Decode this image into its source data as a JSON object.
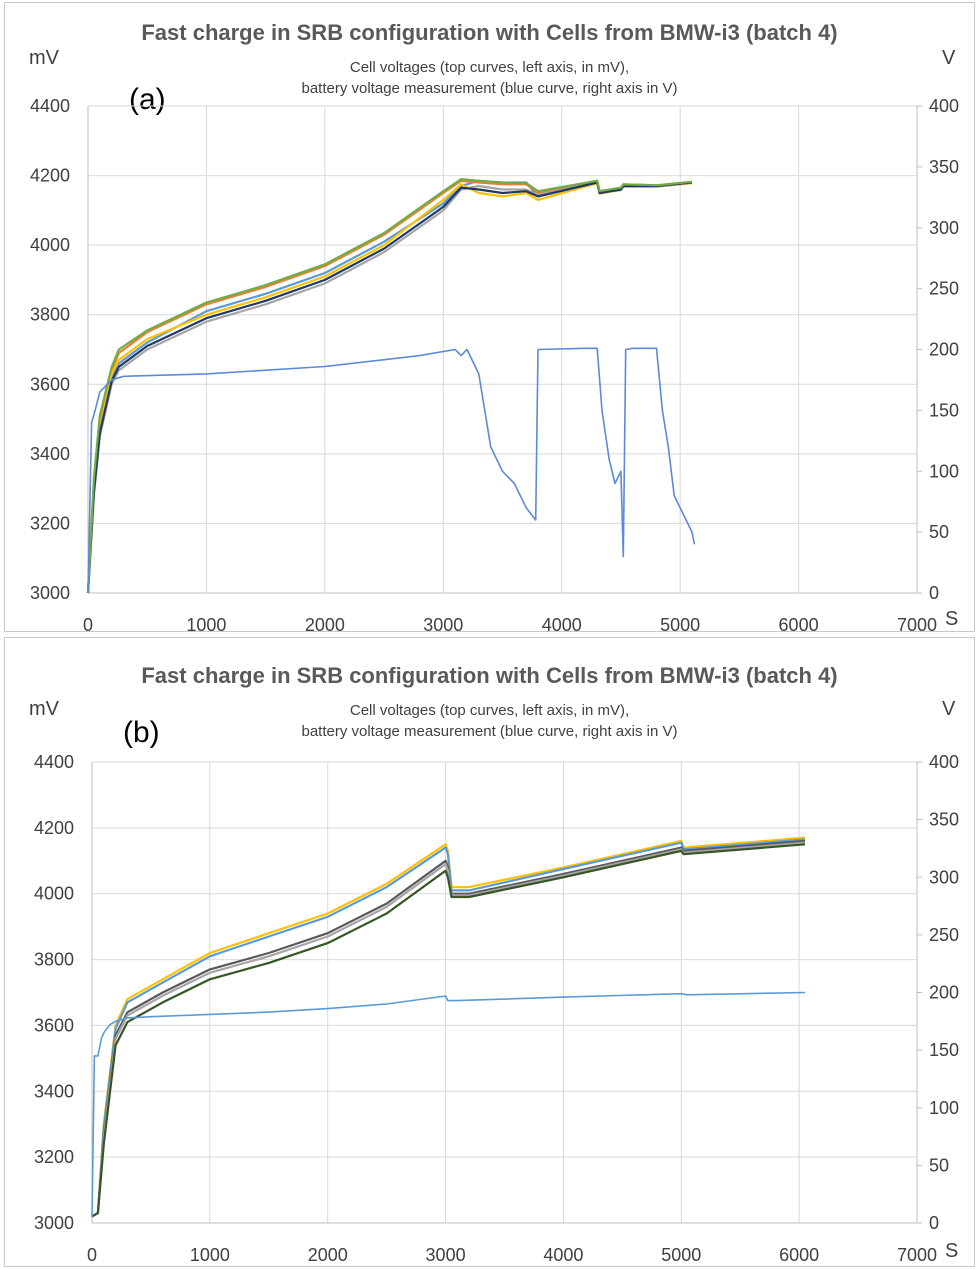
{
  "chart_data": [
    {
      "type": "line",
      "panel_label": "(a)",
      "title": "Fast charge in SRB configuration  with Cells from BMW-i3 (batch 4)",
      "subtitle": [
        "Cell voltages (top curves, left axis, in mV),",
        "battery voltage measurement (blue curve, right axis in V)"
      ],
      "ylabel_left": "mV",
      "ylabel_right": "V",
      "xlabel": "S",
      "xlim": [
        0,
        7000
      ],
      "ylim_left": [
        3000,
        4400
      ],
      "ylim_right": [
        0,
        400
      ],
      "xticks": [
        0,
        1000,
        2000,
        3000,
        4000,
        5000,
        6000,
        7000
      ],
      "yticks_left": [
        3000,
        3200,
        3400,
        3600,
        3800,
        4000,
        4200,
        4400
      ],
      "yticks_right": [
        0,
        50,
        100,
        150,
        200,
        250,
        300,
        350,
        400
      ],
      "grid": true,
      "series": [
        {
          "axis": "left",
          "color": "#5b9bd5",
          "x": [
            0,
            50,
            100,
            200,
            260,
            500,
            1000,
            1500,
            2000,
            2500,
            3000,
            3150,
            3300,
            3500,
            3700,
            3800,
            4300,
            4320,
            4500,
            4520,
            4800,
            5100
          ],
          "y": [
            3000,
            3300,
            3480,
            3620,
            3660,
            3720,
            3810,
            3860,
            3920,
            4010,
            4120,
            4170,
            4185,
            4180,
            4180,
            4140,
            4180,
            4150,
            4160,
            4170,
            4170,
            4180
          ]
        },
        {
          "axis": "left",
          "color": "#ed7d31",
          "x": [
            0,
            50,
            100,
            200,
            260,
            500,
            1000,
            1500,
            2000,
            2500,
            3000,
            3150,
            3300,
            3500,
            3700,
            3800,
            4300,
            4320,
            4500,
            4520,
            4800,
            5100
          ],
          "y": [
            3000,
            3320,
            3500,
            3640,
            3690,
            3750,
            3830,
            3880,
            3940,
            4030,
            4150,
            4185,
            4180,
            4175,
            4175,
            4150,
            4185,
            4155,
            4165,
            4175,
            4172,
            4182
          ]
        },
        {
          "axis": "left",
          "color": "#a5a5a5",
          "x": [
            0,
            50,
            100,
            200,
            260,
            500,
            1000,
            1500,
            2000,
            2500,
            3000,
            3150,
            3300,
            3500,
            3700,
            3800,
            4300,
            4320,
            4500,
            4520,
            4800,
            5100
          ],
          "y": [
            3000,
            3280,
            3450,
            3600,
            3640,
            3700,
            3780,
            3830,
            3890,
            3980,
            4100,
            4160,
            4170,
            4160,
            4160,
            4145,
            4180,
            4150,
            4158,
            4168,
            4168,
            4178
          ]
        },
        {
          "axis": "left",
          "color": "#ffc000",
          "x": [
            0,
            50,
            100,
            200,
            260,
            500,
            1000,
            1500,
            2000,
            2500,
            3000,
            3150,
            3300,
            3500,
            3700,
            3800,
            4300,
            4320,
            4500,
            4520,
            4800,
            5100
          ],
          "y": [
            3000,
            3310,
            3470,
            3630,
            3670,
            3730,
            3800,
            3850,
            3910,
            4000,
            4130,
            4175,
            4150,
            4140,
            4150,
            4130,
            4178,
            4148,
            4160,
            4170,
            4170,
            4178
          ]
        },
        {
          "axis": "left",
          "color": "#1f3864",
          "x": [
            0,
            50,
            100,
            200,
            260,
            500,
            1000,
            1500,
            2000,
            2500,
            3000,
            3150,
            3300,
            3500,
            3700,
            3800,
            4300,
            4320,
            4500,
            4520,
            4800,
            5100
          ],
          "y": [
            3000,
            3290,
            3460,
            3610,
            3650,
            3710,
            3790,
            3840,
            3900,
            3990,
            4110,
            4165,
            4160,
            4150,
            4155,
            4140,
            4180,
            4150,
            4160,
            4170,
            4170,
            4180
          ]
        },
        {
          "axis": "left",
          "color": "#70ad47",
          "x": [
            0,
            50,
            100,
            200,
            260,
            500,
            1000,
            1500,
            2000,
            2500,
            3000,
            3150,
            3300,
            3500,
            3700,
            3800,
            4300,
            4320,
            4500,
            4520,
            4800,
            5100
          ],
          "y": [
            3000,
            3330,
            3510,
            3650,
            3700,
            3755,
            3835,
            3885,
            3945,
            4035,
            4155,
            4190,
            4185,
            4180,
            4178,
            4155,
            4185,
            4155,
            4165,
            4175,
            4172,
            4182
          ]
        },
        {
          "axis": "right",
          "color": "#5b8ad6",
          "x": [
            0,
            30,
            60,
            100,
            200,
            300,
            1000,
            2000,
            2800,
            3100,
            3150,
            3200,
            3300,
            3400,
            3500,
            3600,
            3700,
            3780,
            3800,
            4200,
            4300,
            4340,
            4400,
            4450,
            4500,
            4520,
            4540,
            4600,
            4800,
            4850,
            4900,
            4950,
            5000,
            5050,
            5100,
            5120
          ],
          "y": [
            0,
            140,
            150,
            165,
            175,
            178,
            180,
            186,
            195,
            200,
            195,
            200,
            180,
            120,
            100,
            90,
            70,
            60,
            200,
            201,
            201,
            150,
            110,
            90,
            100,
            30,
            200,
            201,
            201,
            150,
            120,
            80,
            70,
            60,
            50,
            40
          ]
        }
      ]
    },
    {
      "type": "line",
      "panel_label": "(b)",
      "title": "Fast charge in SRB configuration  with Cells from BMW-i3 (batch 4)",
      "subtitle": [
        "Cell voltages (top curves, left axis, in mV),",
        "battery voltage measurement (blue curve, right axis in V)"
      ],
      "ylabel_left": "mV",
      "ylabel_right": "V",
      "xlabel": "S",
      "xlim": [
        0,
        7000
      ],
      "ylim_left": [
        3000,
        4400
      ],
      "ylim_right": [
        0,
        400
      ],
      "xticks": [
        0,
        1000,
        2000,
        3000,
        4000,
        5000,
        6000,
        7000
      ],
      "yticks_left": [
        3000,
        3200,
        3400,
        3600,
        3800,
        4000,
        4200,
        4400
      ],
      "yticks_right": [
        0,
        50,
        100,
        150,
        200,
        250,
        300,
        350,
        400
      ],
      "grid": true,
      "series": [
        {
          "axis": "left",
          "color": "#ffc000",
          "x": [
            0,
            50,
            100,
            200,
            300,
            600,
            1000,
            1500,
            2000,
            2500,
            3000,
            3020,
            3050,
            3200,
            4000,
            5000,
            5020,
            6050
          ],
          "y": [
            3020,
            3030,
            3300,
            3600,
            3680,
            3740,
            3820,
            3880,
            3940,
            4030,
            4150,
            4130,
            4020,
            4020,
            4080,
            4160,
            4140,
            4170
          ]
        },
        {
          "axis": "left",
          "color": "#5b9bd5",
          "x": [
            0,
            50,
            100,
            200,
            300,
            600,
            1000,
            1500,
            2000,
            2500,
            3000,
            3020,
            3050,
            3200,
            4000,
            5000,
            5020,
            6050
          ],
          "y": [
            3020,
            3030,
            3290,
            3590,
            3670,
            3730,
            3810,
            3870,
            3930,
            4020,
            4140,
            4120,
            4010,
            4010,
            4075,
            4155,
            4135,
            4165
          ]
        },
        {
          "axis": "left",
          "color": "#595959",
          "x": [
            0,
            50,
            100,
            200,
            300,
            600,
            1000,
            1500,
            2000,
            2500,
            3000,
            3020,
            3050,
            3200,
            4000,
            5000,
            5020,
            6050
          ],
          "y": [
            3020,
            3030,
            3270,
            3570,
            3640,
            3700,
            3770,
            3820,
            3880,
            3970,
            4100,
            4080,
            4000,
            4000,
            4060,
            4140,
            4130,
            4160
          ]
        },
        {
          "axis": "left",
          "color": "#a5a5a5",
          "x": [
            0,
            50,
            100,
            200,
            300,
            600,
            1000,
            1500,
            2000,
            2500,
            3000,
            3020,
            3050,
            3200,
            4000,
            5000,
            5020,
            6050
          ],
          "y": [
            3020,
            3030,
            3260,
            3560,
            3630,
            3690,
            3760,
            3810,
            3870,
            3960,
            4090,
            4070,
            3995,
            3995,
            4055,
            4135,
            4125,
            4155
          ]
        },
        {
          "axis": "left",
          "color": "#375623",
          "x": [
            0,
            50,
            100,
            200,
            300,
            600,
            1000,
            1500,
            2000,
            2500,
            3000,
            3020,
            3050,
            3200,
            4000,
            5000,
            5020,
            6050
          ],
          "y": [
            3020,
            3030,
            3240,
            3540,
            3610,
            3670,
            3740,
            3790,
            3850,
            3940,
            4070,
            4050,
            3990,
            3990,
            4050,
            4130,
            4120,
            4150
          ]
        },
        {
          "axis": "right",
          "color": "#5b9bd5",
          "x": [
            0,
            20,
            50,
            80,
            100,
            150,
            200,
            300,
            500,
            1000,
            1500,
            2000,
            2500,
            3000,
            3020,
            3100,
            4000,
            5000,
            5050,
            6050
          ],
          "y": [
            5,
            145,
            145,
            160,
            165,
            172,
            175,
            178,
            179,
            181,
            183,
            186,
            190,
            197,
            193,
            193,
            196,
            199,
            198,
            200
          ]
        }
      ]
    }
  ]
}
